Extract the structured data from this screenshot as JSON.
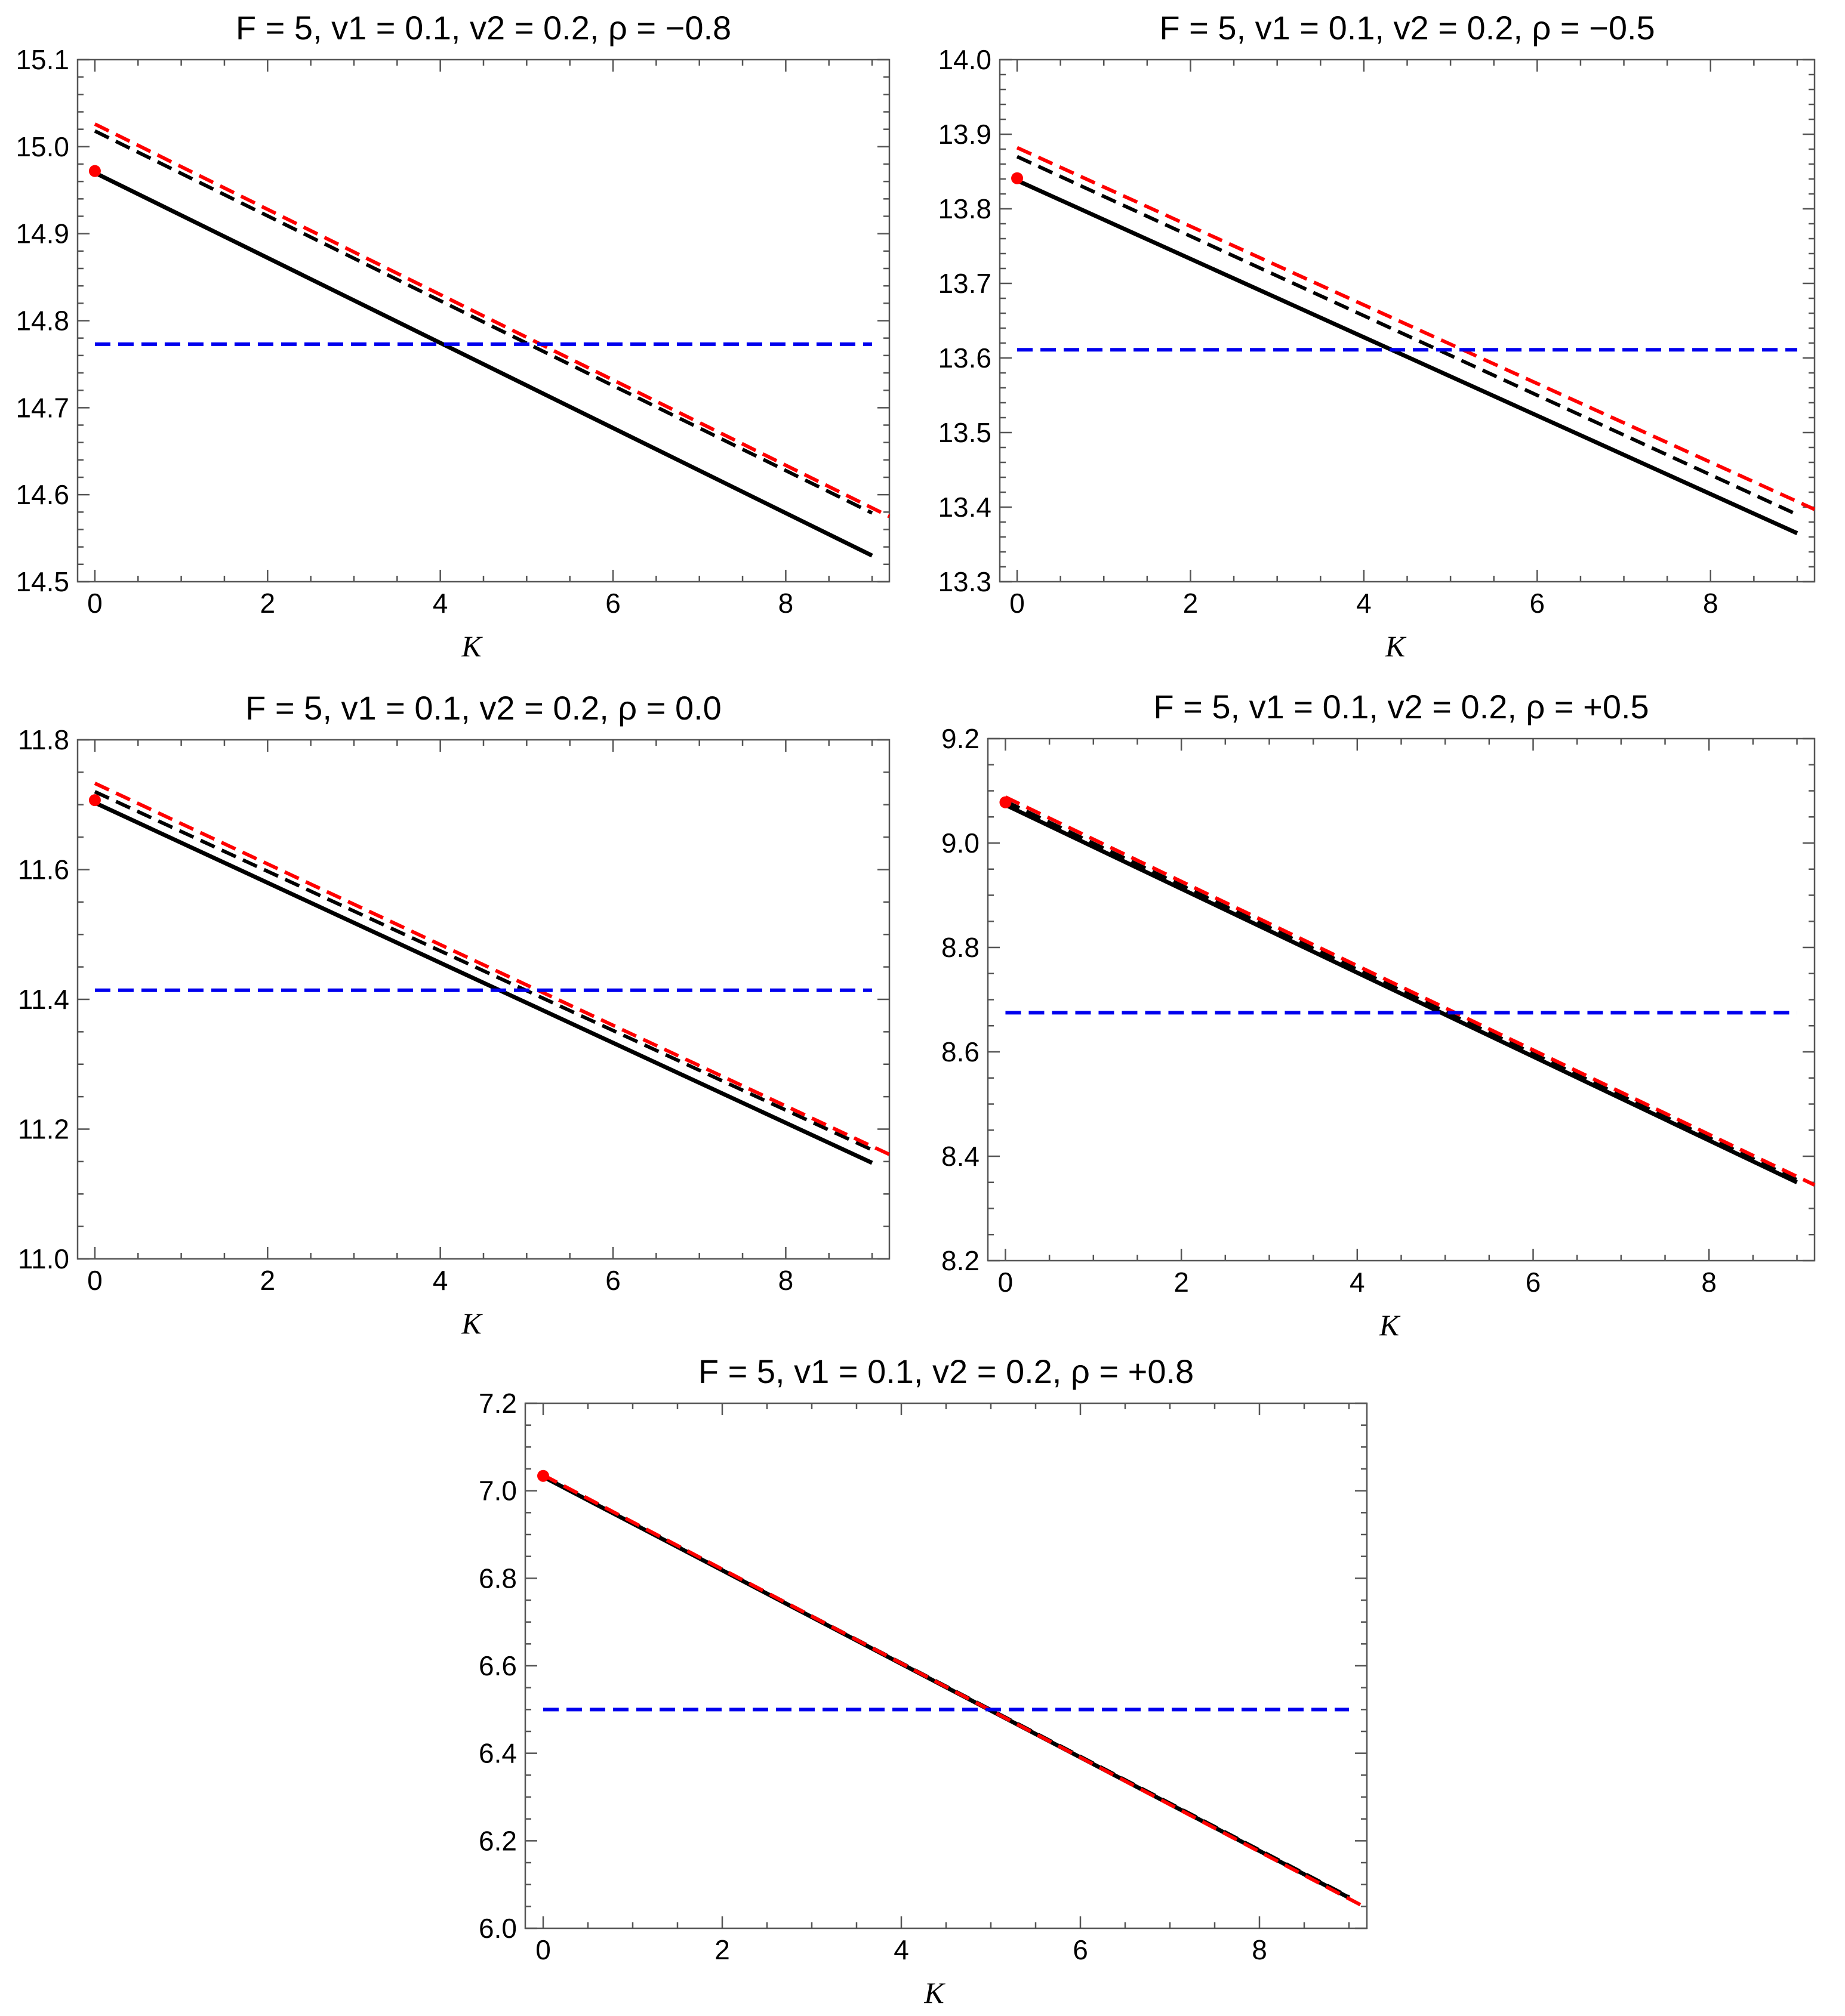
{
  "chart_data": [
    {
      "type": "line",
      "title": "F = 5, v1 = 0.1,  v2 = 0.2,  ρ = −0.8",
      "xlabel": "K",
      "ylabel": "",
      "xlim": [
        -0.2,
        9.2
      ],
      "ylim": [
        14.5,
        15.1
      ],
      "xticks": [
        0,
        2,
        4,
        6,
        8
      ],
      "xtick_labels": [
        "0",
        "2",
        "4",
        "6",
        "8"
      ],
      "yticks": [
        14.5,
        14.6,
        14.7,
        14.8,
        14.9,
        15.0,
        15.1
      ],
      "ytick_labels": [
        "14.5",
        "14.6",
        "14.7",
        "14.8",
        "14.9",
        "15.0",
        "15.1"
      ],
      "series": [
        {
          "name": "black-solid",
          "color": "#000000",
          "style": "solid",
          "x": [
            0,
            9
          ],
          "y": [
            14.97,
            14.53
          ]
        },
        {
          "name": "black-dashed",
          "color": "#000000",
          "style": "dashed",
          "x": [
            0,
            9
          ],
          "y": [
            15.018,
            14.579
          ]
        },
        {
          "name": "red-dashed",
          "color": "#ff0000",
          "style": "dashed",
          "x": [
            0,
            9.2
          ],
          "y": [
            15.026,
            14.575
          ]
        },
        {
          "name": "blue-dashed",
          "color": "#0000ee",
          "style": "dashed",
          "x": [
            0,
            9
          ],
          "y": [
            14.773,
            14.773
          ]
        }
      ],
      "points": [
        {
          "x": 0,
          "y": 14.972,
          "color": "#ff0000"
        }
      ]
    },
    {
      "type": "line",
      "title": "F = 5, v1 = 0.1,  v2 = 0.2,  ρ = −0.5",
      "xlabel": "K",
      "ylabel": "",
      "xlim": [
        -0.2,
        9.2
      ],
      "ylim": [
        13.3,
        14.0
      ],
      "xticks": [
        0,
        2,
        4,
        6,
        8
      ],
      "xtick_labels": [
        "0",
        "2",
        "4",
        "6",
        "8"
      ],
      "yticks": [
        13.3,
        13.4,
        13.5,
        13.6,
        13.7,
        13.8,
        13.9,
        14.0
      ],
      "ytick_labels": [
        "13.3",
        "13.4",
        "13.5",
        "13.6",
        "13.7",
        "13.8",
        "13.9",
        "14.0"
      ],
      "series": [
        {
          "name": "black-solid",
          "color": "#000000",
          "style": "solid",
          "x": [
            0,
            9
          ],
          "y": [
            13.838,
            13.365
          ]
        },
        {
          "name": "black-dashed",
          "color": "#000000",
          "style": "dashed",
          "x": [
            0,
            9
          ],
          "y": [
            13.87,
            13.39
          ]
        },
        {
          "name": "red-dashed",
          "color": "#ff0000",
          "style": "dashed",
          "x": [
            0,
            9.2
          ],
          "y": [
            13.882,
            13.397
          ]
        },
        {
          "name": "blue-dashed",
          "color": "#0000ee",
          "style": "dashed",
          "x": [
            0,
            9
          ],
          "y": [
            13.611,
            13.611
          ]
        }
      ],
      "points": [
        {
          "x": 0,
          "y": 13.841,
          "color": "#ff0000"
        }
      ]
    },
    {
      "type": "line",
      "title": "F = 5, v1 = 0.1,  v2 = 0.2,  ρ =  0.0",
      "xlabel": "K",
      "ylabel": "",
      "xlim": [
        -0.2,
        9.2
      ],
      "ylim": [
        11.0,
        11.8
      ],
      "xticks": [
        0,
        2,
        4,
        6,
        8
      ],
      "xtick_labels": [
        "0",
        "2",
        "4",
        "6",
        "8"
      ],
      "yticks": [
        11.0,
        11.2,
        11.4,
        11.6,
        11.8
      ],
      "ytick_labels": [
        "11.0",
        "11.2",
        "11.4",
        "11.6",
        "11.8"
      ],
      "series": [
        {
          "name": "black-solid",
          "color": "#000000",
          "style": "solid",
          "x": [
            0,
            9
          ],
          "y": [
            11.703,
            11.148
          ]
        },
        {
          "name": "black-dashed",
          "color": "#000000",
          "style": "dashed",
          "x": [
            0,
            9
          ],
          "y": [
            11.72,
            11.168
          ]
        },
        {
          "name": "red-dashed",
          "color": "#ff0000",
          "style": "dashed",
          "x": [
            0,
            9.2
          ],
          "y": [
            11.733,
            11.161
          ]
        },
        {
          "name": "blue-dashed",
          "color": "#0000ee",
          "style": "dashed",
          "x": [
            0,
            9
          ],
          "y": [
            11.414,
            11.414
          ]
        }
      ],
      "points": [
        {
          "x": 0,
          "y": 11.707,
          "color": "#ff0000"
        }
      ]
    },
    {
      "type": "line",
      "title": "F = 5, v1 = 0.1,  v2 = 0.2,  ρ = +0.5",
      "xlabel": "K",
      "ylabel": "",
      "xlim": [
        -0.2,
        9.2
      ],
      "ylim": [
        8.2,
        9.2
      ],
      "xticks": [
        0,
        2,
        4,
        6,
        8
      ],
      "xtick_labels": [
        "0",
        "2",
        "4",
        "6",
        "8"
      ],
      "yticks": [
        8.2,
        8.4,
        8.6,
        8.8,
        9.0,
        9.2
      ],
      "ytick_labels": [
        "8.2",
        "8.4",
        "8.6",
        "8.8",
        "9.0",
        "9.2"
      ],
      "series": [
        {
          "name": "black-solid",
          "color": "#000000",
          "style": "solid",
          "x": [
            0,
            9
          ],
          "y": [
            9.073,
            8.35
          ]
        },
        {
          "name": "black-dashed",
          "color": "#000000",
          "style": "dashed",
          "x": [
            0,
            9
          ],
          "y": [
            9.08,
            8.355
          ]
        },
        {
          "name": "red-dashed",
          "color": "#ff0000",
          "style": "dashed",
          "x": [
            0,
            9.2
          ],
          "y": [
            9.088,
            8.345
          ]
        },
        {
          "name": "blue-dashed",
          "color": "#0000ee",
          "style": "dashed",
          "x": [
            0,
            9
          ],
          "y": [
            8.675,
            8.675
          ]
        }
      ],
      "points": [
        {
          "x": 0,
          "y": 9.078,
          "color": "#ff0000"
        }
      ]
    },
    {
      "type": "line",
      "title": "F = 5, v1 = 0.1,  v2 = 0.2,  ρ = +0.8",
      "xlabel": "K",
      "ylabel": "",
      "xlim": [
        -0.2,
        9.2
      ],
      "ylim": [
        6.0,
        7.2
      ],
      "xticks": [
        0,
        2,
        4,
        6,
        8
      ],
      "xtick_labels": [
        "0",
        "2",
        "4",
        "6",
        "8"
      ],
      "yticks": [
        6.0,
        6.2,
        6.4,
        6.6,
        6.8,
        7.0,
        7.2
      ],
      "ytick_labels": [
        "6.0",
        "6.2",
        "6.4",
        "6.6",
        "6.8",
        "7.0",
        "7.2"
      ],
      "series": [
        {
          "name": "black-solid",
          "color": "#000000",
          "style": "solid",
          "x": [
            0,
            9
          ],
          "y": [
            7.032,
            6.07
          ]
        },
        {
          "name": "black-dashed",
          "color": "#000000",
          "style": "dashed",
          "x": [
            0,
            9
          ],
          "y": [
            7.034,
            6.072
          ]
        },
        {
          "name": "red-dashed",
          "color": "#ff0000",
          "style": "dashed",
          "x": [
            0,
            9.2
          ],
          "y": [
            7.036,
            6.046
          ]
        },
        {
          "name": "blue-dashed",
          "color": "#0000ee",
          "style": "dashed",
          "x": [
            0,
            9
          ],
          "y": [
            6.5,
            6.5
          ]
        }
      ],
      "points": [
        {
          "x": 0,
          "y": 7.034,
          "color": "#ff0000"
        }
      ]
    }
  ]
}
